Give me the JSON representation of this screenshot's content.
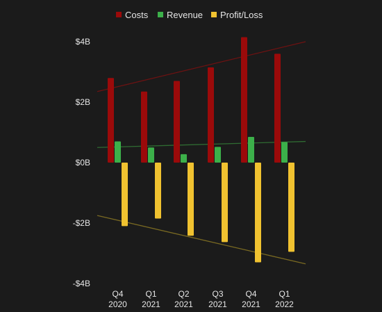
{
  "chart_data": {
    "type": "bar",
    "categories": [
      [
        "Q4",
        "2020"
      ],
      [
        "Q1",
        "2021"
      ],
      [
        "Q2",
        "2021"
      ],
      [
        "Q3",
        "2021"
      ],
      [
        "Q4",
        "2021"
      ],
      [
        "Q1",
        "2022"
      ]
    ],
    "series": [
      {
        "name": "Costs",
        "color": "#9b0a0a",
        "values": [
          2.8,
          2.35,
          2.7,
          3.15,
          4.15,
          3.6
        ]
      },
      {
        "name": "Revenue",
        "color": "#3cb04a",
        "values": [
          0.7,
          0.5,
          0.28,
          0.52,
          0.85,
          0.68
        ]
      },
      {
        "name": "Profit/Loss",
        "color": "#f0c230",
        "values": [
          -2.1,
          -1.85,
          -2.42,
          -2.63,
          -3.3,
          -2.95
        ]
      }
    ],
    "trendlines": [
      {
        "series": "Costs",
        "color": "#6e1212",
        "start": 2.35,
        "end": 4.0
      },
      {
        "series": "Revenue",
        "color": "#2f6b32",
        "start": 0.5,
        "end": 0.7
      },
      {
        "series": "Profit/Loss",
        "color": "#7a6a22",
        "start": -1.75,
        "end": -3.35
      }
    ],
    "y_ticks": [
      {
        "value": 4,
        "label": "$4B"
      },
      {
        "value": 2,
        "label": "$2B"
      },
      {
        "value": 0,
        "label": "$0B"
      },
      {
        "value": -2,
        "label": "-$2B"
      },
      {
        "value": -4,
        "label": "-$4B"
      }
    ],
    "ylim": [
      -4,
      4
    ],
    "legend_position": "top-center",
    "grid": false,
    "title": "",
    "xlabel": "",
    "ylabel": ""
  }
}
